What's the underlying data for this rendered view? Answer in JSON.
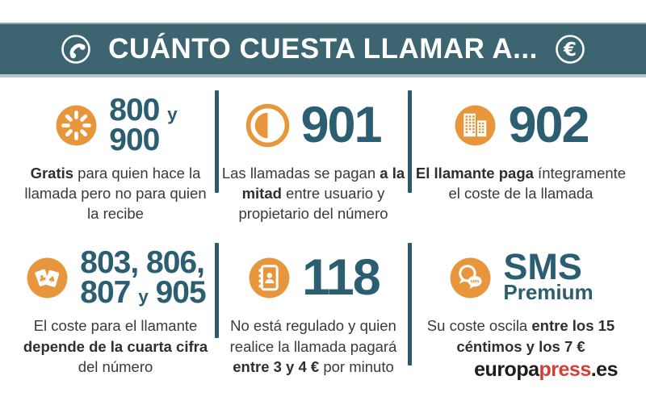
{
  "header": {
    "title": "CUÁNTO CUESTA LLAMAR A...",
    "euro_symbol": "€",
    "left_icon": "phone-icon",
    "right_icon": "euro-icon"
  },
  "colors": {
    "bar_teal": "#3d6571",
    "number_teal": "#2c5e72",
    "accent_orange": "#e8963c",
    "divider_teal": "#2d5a6b",
    "body_text": "#3a3a3a",
    "logo_red": "#d23f38"
  },
  "cells": [
    {
      "icon": "dial-icon",
      "number_lines": [
        [
          {
            "t": "800 "
          },
          {
            "t": "y",
            "sm": true
          }
        ],
        [
          {
            "t": "900"
          }
        ]
      ],
      "text": [
        {
          "t": "Gratis",
          "b": true
        },
        {
          "t": " para quien hace la llamada pero no para quien la recibe"
        }
      ]
    },
    {
      "icon": "half-circle-icon",
      "number_lines": [
        [
          {
            "t": "901"
          }
        ]
      ],
      "text": [
        {
          "t": "Las llamadas se pagan "
        },
        {
          "t": "a la mitad",
          "b": true
        },
        {
          "t": " entre usuario y propietario del número"
        }
      ]
    },
    {
      "icon": "buildings-icon",
      "number_lines": [
        [
          {
            "t": "902"
          }
        ]
      ],
      "text": [
        {
          "t": "El llamante paga",
          "b": true
        },
        {
          "t": " íntegramente el coste de la llamada"
        }
      ]
    },
    {
      "icon": "cards-icon",
      "number_lines": [
        [
          {
            "t": "803, 806,"
          }
        ],
        [
          {
            "t": "807 "
          },
          {
            "t": "y",
            "sm": true
          },
          {
            "t": " 905"
          }
        ]
      ],
      "text": [
        {
          "t": "El coste para el llamante "
        },
        {
          "t": "depende de la cuarta cifra",
          "b": true
        },
        {
          "t": " del número"
        }
      ]
    },
    {
      "icon": "contacts-book-icon",
      "number_lines": [
        [
          {
            "t": "118"
          }
        ]
      ],
      "text": [
        {
          "t": "No está regulado y quien realice la llamada pagará "
        },
        {
          "t": "entre 3 y 4 €",
          "b": true
        },
        {
          "t": " por minuto"
        }
      ]
    },
    {
      "icon": "sms-chat-icon",
      "icon_label": "SMS",
      "number_lines": [
        [
          {
            "t": "SMS"
          }
        ],
        [
          {
            "t": "Premium"
          }
        ]
      ],
      "text": [
        {
          "t": "Su coste oscila "
        },
        {
          "t": "entre los 15 céntimos y los 7 €",
          "b": true
        }
      ]
    }
  ],
  "footer": {
    "logo": [
      {
        "t": "europa"
      },
      {
        "t": "press",
        "c": "#d23f38"
      },
      {
        "t": ".es"
      }
    ]
  }
}
